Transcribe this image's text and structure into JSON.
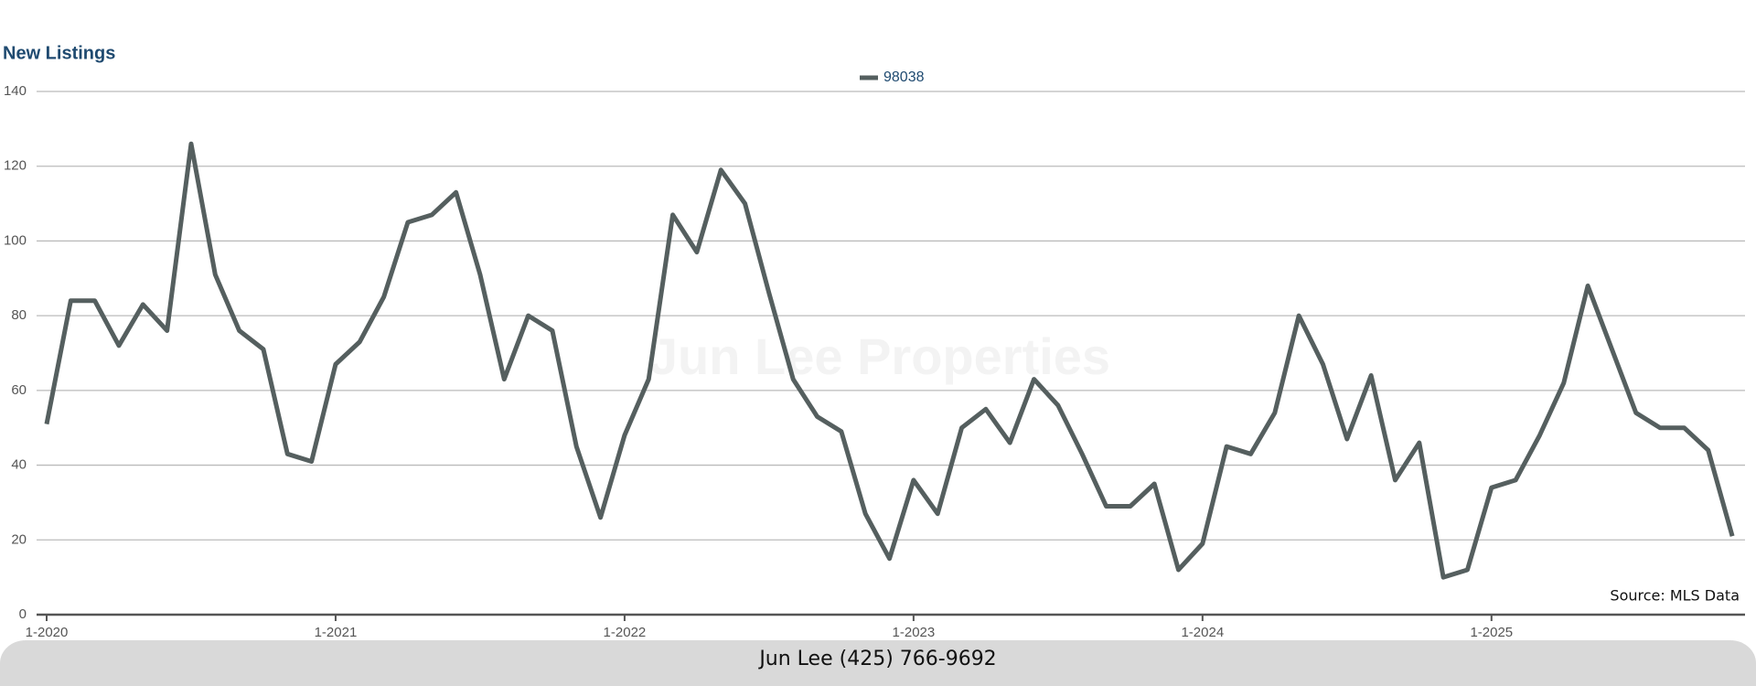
{
  "chart_data": {
    "type": "line",
    "title": "New Listings",
    "categories": [
      "1-2020",
      null,
      null,
      null,
      null,
      null,
      null,
      null,
      null,
      null,
      null,
      null,
      "1-2021",
      null,
      null,
      null,
      null,
      null,
      null,
      null,
      null,
      null,
      null,
      null,
      "1-2022",
      null,
      null,
      null,
      null,
      null,
      null,
      null,
      null,
      null,
      null,
      null,
      "1-2023",
      null,
      null,
      null,
      null,
      null,
      null,
      null,
      null,
      null,
      null,
      null,
      "1-2024",
      null,
      null,
      null,
      null,
      null,
      null,
      null,
      null,
      null,
      null,
      null,
      "1-2025",
      null,
      null,
      null,
      null,
      null,
      null,
      null,
      null,
      null,
      null
    ],
    "series": [
      {
        "name": "98038",
        "color": "#555f5f",
        "values": [
          51,
          84,
          84,
          72,
          83,
          76,
          126,
          91,
          76,
          71,
          43,
          41,
          67,
          73,
          85,
          105,
          107,
          113,
          91,
          63,
          80,
          76,
          45,
          26,
          48,
          63,
          107,
          97,
          119,
          110,
          86,
          63,
          53,
          49,
          27,
          15,
          36,
          27,
          50,
          55,
          46,
          63,
          56,
          43,
          29,
          29,
          35,
          12,
          19,
          45,
          43,
          54,
          80,
          67,
          47,
          64,
          36,
          46,
          10,
          12,
          34,
          36,
          48,
          62,
          88,
          71,
          54,
          50,
          50,
          44,
          21
        ]
      }
    ],
    "ylim": [
      0,
      140
    ],
    "yticks": [
      0,
      20,
      40,
      60,
      80,
      100,
      120,
      140
    ],
    "grid": true,
    "legend": "top",
    "source": "Source: MLS Data",
    "watermark": "Jun Lee Properties"
  },
  "footer": {
    "text": "Jun Lee (425) 766-9692"
  }
}
